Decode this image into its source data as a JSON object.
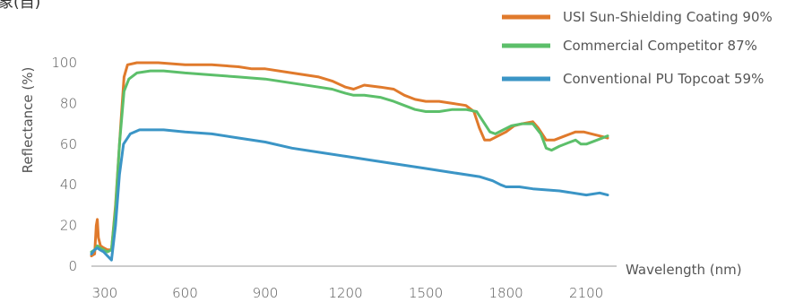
{
  "title_fragment": "象(自)",
  "chart_data": {
    "type": "line",
    "xlabel": "Wavelength (nm)",
    "ylabel": "Reflectance (%)",
    "xlim": [
      250,
      2200
    ],
    "ylim": [
      0,
      100
    ],
    "x_ticks": [
      300,
      600,
      900,
      1200,
      1500,
      1800,
      2100
    ],
    "y_ticks": [
      0,
      20,
      40,
      60,
      80,
      100
    ],
    "grid": false,
    "legend_position": "top-right",
    "series": [
      {
        "name": "USI Sun-Shielding Coating 90%",
        "color": "#e07a2c",
        "points": [
          [
            250,
            5
          ],
          [
            262,
            6
          ],
          [
            268,
            20
          ],
          [
            272,
            23
          ],
          [
            276,
            14
          ],
          [
            284,
            10
          ],
          [
            296,
            9
          ],
          [
            310,
            8
          ],
          [
            325,
            8
          ],
          [
            340,
            30
          ],
          [
            360,
            70
          ],
          [
            372,
            93
          ],
          [
            385,
            99
          ],
          [
            420,
            100
          ],
          [
            500,
            100
          ],
          [
            600,
            99
          ],
          [
            700,
            99
          ],
          [
            800,
            98
          ],
          [
            850,
            97
          ],
          [
            900,
            97
          ],
          [
            1000,
            95
          ],
          [
            1100,
            93
          ],
          [
            1150,
            91
          ],
          [
            1200,
            88
          ],
          [
            1230,
            87
          ],
          [
            1270,
            89
          ],
          [
            1330,
            88
          ],
          [
            1380,
            87
          ],
          [
            1420,
            84
          ],
          [
            1460,
            82
          ],
          [
            1500,
            81
          ],
          [
            1550,
            81
          ],
          [
            1600,
            80
          ],
          [
            1650,
            79
          ],
          [
            1680,
            76
          ],
          [
            1700,
            68
          ],
          [
            1720,
            62
          ],
          [
            1740,
            62
          ],
          [
            1770,
            64
          ],
          [
            1800,
            66
          ],
          [
            1830,
            69
          ],
          [
            1860,
            70
          ],
          [
            1900,
            71
          ],
          [
            1920,
            68
          ],
          [
            1950,
            62
          ],
          [
            1980,
            62
          ],
          [
            2020,
            64
          ],
          [
            2060,
            66
          ],
          [
            2090,
            66
          ],
          [
            2120,
            65
          ],
          [
            2150,
            64
          ],
          [
            2180,
            63
          ]
        ]
      },
      {
        "name": "Commercial Competitor 87%",
        "color": "#5cbf6a",
        "points": [
          [
            250,
            7
          ],
          [
            262,
            8
          ],
          [
            272,
            10
          ],
          [
            282,
            9
          ],
          [
            296,
            8
          ],
          [
            310,
            7
          ],
          [
            325,
            8
          ],
          [
            340,
            28
          ],
          [
            355,
            60
          ],
          [
            372,
            86
          ],
          [
            390,
            92
          ],
          [
            420,
            95
          ],
          [
            470,
            96
          ],
          [
            520,
            96
          ],
          [
            600,
            95
          ],
          [
            700,
            94
          ],
          [
            800,
            93
          ],
          [
            900,
            92
          ],
          [
            1000,
            90
          ],
          [
            1100,
            88
          ],
          [
            1150,
            87
          ],
          [
            1200,
            85
          ],
          [
            1230,
            84
          ],
          [
            1270,
            84
          ],
          [
            1330,
            83
          ],
          [
            1380,
            81
          ],
          [
            1420,
            79
          ],
          [
            1460,
            77
          ],
          [
            1500,
            76
          ],
          [
            1550,
            76
          ],
          [
            1600,
            77
          ],
          [
            1650,
            77
          ],
          [
            1690,
            76
          ],
          [
            1710,
            72
          ],
          [
            1740,
            66
          ],
          [
            1760,
            65
          ],
          [
            1790,
            67
          ],
          [
            1820,
            69
          ],
          [
            1860,
            70
          ],
          [
            1900,
            70
          ],
          [
            1930,
            65
          ],
          [
            1950,
            58
          ],
          [
            1970,
            57
          ],
          [
            2000,
            59
          ],
          [
            2040,
            61
          ],
          [
            2060,
            62
          ],
          [
            2080,
            60
          ],
          [
            2100,
            60
          ],
          [
            2140,
            62
          ],
          [
            2180,
            64
          ]
        ]
      },
      {
        "name": "Conventional PU Topcoat 59%",
        "color": "#3b95c6",
        "points": [
          [
            250,
            6
          ],
          [
            262,
            8
          ],
          [
            272,
            9
          ],
          [
            282,
            8
          ],
          [
            296,
            7
          ],
          [
            310,
            5
          ],
          [
            325,
            3
          ],
          [
            340,
            20
          ],
          [
            355,
            45
          ],
          [
            370,
            60
          ],
          [
            395,
            65
          ],
          [
            430,
            67
          ],
          [
            470,
            67
          ],
          [
            520,
            67
          ],
          [
            600,
            66
          ],
          [
            700,
            65
          ],
          [
            800,
            63
          ],
          [
            900,
            61
          ],
          [
            1000,
            58
          ],
          [
            1100,
            56
          ],
          [
            1200,
            54
          ],
          [
            1300,
            52
          ],
          [
            1400,
            50
          ],
          [
            1500,
            48
          ],
          [
            1600,
            46
          ],
          [
            1700,
            44
          ],
          [
            1750,
            42
          ],
          [
            1780,
            40
          ],
          [
            1800,
            39
          ],
          [
            1850,
            39
          ],
          [
            1900,
            38
          ],
          [
            2000,
            37
          ],
          [
            2100,
            35
          ],
          [
            2150,
            36
          ],
          [
            2180,
            35
          ]
        ]
      }
    ]
  }
}
